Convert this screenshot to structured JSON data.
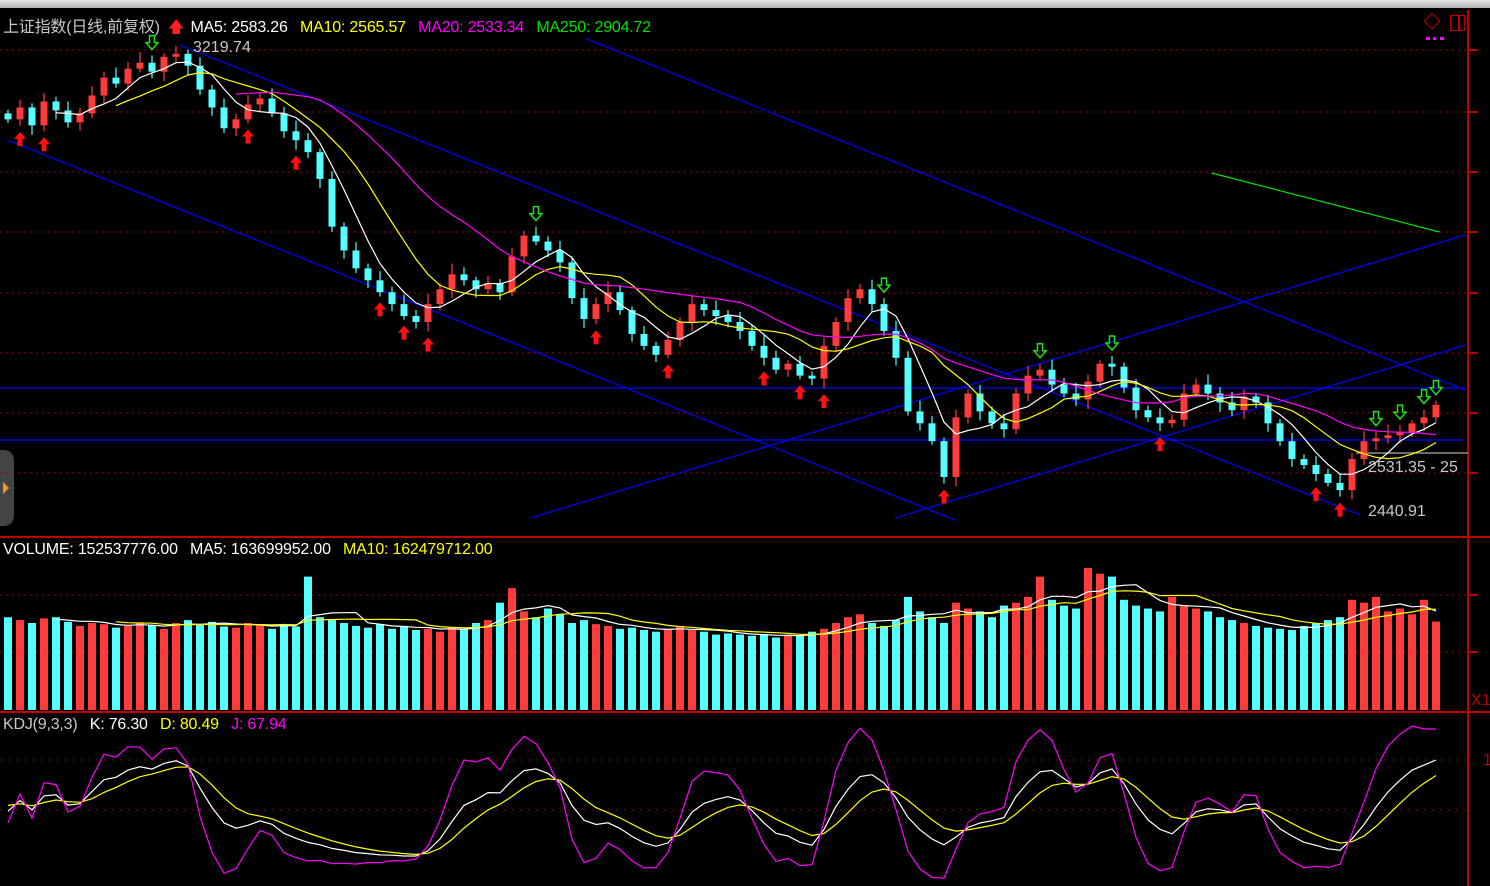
{
  "header": {
    "title": "上证指数(日线,前复权)",
    "ma5": "MA5: 2583.26",
    "ma10": "MA10: 2565.57",
    "ma20": "MA20: 2533.34",
    "ma250": "MA250: 2904.72"
  },
  "volume_header": {
    "volume": "VOLUME: 152537776.00",
    "ma5": "MA5: 163699952.00",
    "ma10": "MA10: 162479712.00"
  },
  "kdj_header": {
    "name": "KDJ(9,3,3)",
    "k": "K: 76.30",
    "d": "D: 80.49",
    "j": "J: 67.94"
  },
  "annotations": {
    "high_label": "3219.74",
    "range_label": "2531.35 - 25",
    "low_label": "2440.91",
    "axis_x1": "X1",
    "axis_kdj_tick": "1"
  },
  "colors": {
    "up": "#ff3b3b",
    "down": "#54ffff",
    "ma5": "#ffffff",
    "ma10": "#ffff00",
    "ma20": "#ff00ff",
    "ma250": "#00e000",
    "trendline": "#0000ff",
    "grid": "#a00000",
    "axis": "#c00000"
  },
  "chart_data": {
    "type": "candlestick",
    "price_range": [
      2440.91,
      3219.74
    ],
    "grid": true,
    "close": [
      3100,
      3120,
      3090,
      3130,
      3115,
      3095,
      3110,
      3140,
      3170,
      3160,
      3185,
      3195,
      3180,
      3205,
      3210,
      3190,
      3150,
      3120,
      3085,
      3100,
      3125,
      3135,
      3110,
      3080,
      3065,
      3045,
      3000,
      2920,
      2880,
      2850,
      2830,
      2810,
      2790,
      2770,
      2760,
      2790,
      2815,
      2840,
      2830,
      2815,
      2825,
      2810,
      2870,
      2905,
      2895,
      2880,
      2860,
      2800,
      2765,
      2790,
      2810,
      2780,
      2740,
      2720,
      2705,
      2730,
      2760,
      2790,
      2780,
      2770,
      2760,
      2745,
      2720,
      2700,
      2680,
      2690,
      2670,
      2665,
      2720,
      2760,
      2800,
      2815,
      2790,
      2745,
      2700,
      2610,
      2590,
      2560,
      2500,
      2600,
      2640,
      2610,
      2590,
      2580,
      2640,
      2670,
      2680,
      2655,
      2640,
      2630,
      2660,
      2690,
      2685,
      2650,
      2612,
      2600,
      2590,
      2596,
      2640,
      2655,
      2640,
      2625,
      2612,
      2635,
      2625,
      2590,
      2560,
      2530,
      2520,
      2505,
      2490,
      2478,
      2530,
      2560,
      2565,
      2570,
      2575,
      2590,
      2600,
      2621
    ],
    "volume": [
      160000000.0,
      155000000.0,
      150000000.0,
      158000000.0,
      160000000.0,
      152000000.0,
      145000000.0,
      150000000.0,
      148000000.0,
      142000000.0,
      145000000.0,
      150000000.0,
      146000000.0,
      140000000.0,
      150000000.0,
      155000000.0,
      148000000.0,
      152000000.0,
      144000000.0,
      142000000.0,
      150000000.0,
      146000000.0,
      140000000.0,
      148000000.0,
      144000000.0,
      230000000.0,
      160000000.0,
      155000000.0,
      150000000.0,
      145000000.0,
      142000000.0,
      148000000.0,
      140000000.0,
      145000000.0,
      138000000.0,
      140000000.0,
      135000000.0,
      142000000.0,
      140000000.0,
      150000000.0,
      155000000.0,
      185000000.0,
      210000000.0,
      170000000.0,
      160000000.0,
      175000000.0,
      165000000.0,
      150000000.0,
      155000000.0,
      148000000.0,
      145000000.0,
      140000000.0,
      142000000.0,
      138000000.0,
      135000000.0,
      140000000.0,
      145000000.0,
      138000000.0,
      135000000.0,
      130000000.0,
      132000000.0,
      130000000.0,
      128000000.0,
      130000000.0,
      125000000.0,
      130000000.0,
      128000000.0,
      135000000.0,
      140000000.0,
      150000000.0,
      160000000.0,
      165000000.0,
      150000000.0,
      145000000.0,
      155000000.0,
      195000000.0,
      170000000.0,
      160000000.0,
      150000000.0,
      185000000.0,
      175000000.0,
      170000000.0,
      160000000.0,
      180000000.0,
      185000000.0,
      195000000.0,
      230000000.0,
      190000000.0,
      180000000.0,
      175000000.0,
      245000000.0,
      235000000.0,
      230000000.0,
      190000000.0,
      180000000.0,
      175000000.0,
      170000000.0,
      195000000.0,
      180000000.0,
      175000000.0,
      170000000.0,
      160000000.0,
      155000000.0,
      150000000.0,
      145000000.0,
      142000000.0,
      140000000.0,
      138000000.0,
      145000000.0,
      150000000.0,
      155000000.0,
      160000000.0,
      190000000.0,
      185000000.0,
      195000000.0,
      170000000.0,
      175000000.0,
      165000000.0,
      190000000.0,
      152500000.0
    ],
    "buy_signals": [
      1,
      3,
      20,
      24,
      31,
      33,
      35,
      49,
      55,
      63,
      66,
      68,
      78,
      96,
      109,
      111
    ],
    "sell_signals": [
      12,
      44,
      73,
      86,
      92,
      114,
      116,
      118,
      119
    ],
    "trendlines": [
      [
        [
          0,
          3065
        ],
        [
          79,
          2427
        ]
      ],
      [
        [
          14.3,
          3225
        ],
        [
          112.7,
          2436
        ]
      ],
      [
        [
          48.1,
          3236
        ],
        [
          121.4,
          2646
        ]
      ],
      [
        [
          43.5,
          2431
        ],
        [
          121.4,
          2906
        ]
      ],
      [
        [
          73.9,
          2431
        ],
        [
          121.4,
          2721
        ]
      ],
      [
        [
          -1,
          2649
        ],
        [
          121.4,
          2649
        ]
      ],
      [
        [
          -1,
          2562
        ],
        [
          121.4,
          2562
        ]
      ]
    ],
    "ma250_segment": [
      [
        100.3,
        3010
      ],
      [
        119.3,
        2911
      ]
    ]
  }
}
